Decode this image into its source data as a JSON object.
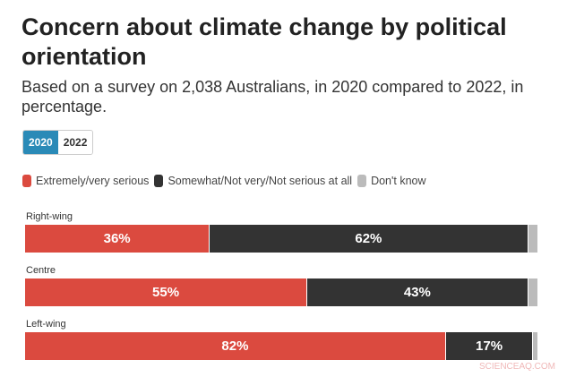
{
  "title": "Concern about climate change by political orientation",
  "subtitle": "Based on a survey on 2,038 Australians, in 2020 compared to 2022, in percentage.",
  "year_buttons": [
    {
      "label": "2020",
      "active": true
    },
    {
      "label": "2022",
      "active": false
    }
  ],
  "watermark": "SCIENCEAQ.COM",
  "chart_data": {
    "type": "bar",
    "stacked": true,
    "orientation": "horizontal",
    "unit": "%",
    "categories": [
      "Right-wing",
      "Centre",
      "Left-wing"
    ],
    "series": [
      {
        "name": "Extremely/very serious",
        "color": "#db4a3f",
        "values": [
          36,
          55,
          82
        ]
      },
      {
        "name": "Somewhat/Not very/Not serious at all",
        "color": "#333333",
        "values": [
          62,
          43,
          17
        ]
      },
      {
        "name": "Don't know",
        "color": "#bbbbbb",
        "values": [
          2,
          2,
          1
        ]
      }
    ],
    "data_labels": [
      [
        "36%",
        "62%",
        ""
      ],
      [
        "55%",
        "43%",
        ""
      ],
      [
        "82%",
        "17%",
        ""
      ]
    ],
    "legend": "top-left"
  }
}
